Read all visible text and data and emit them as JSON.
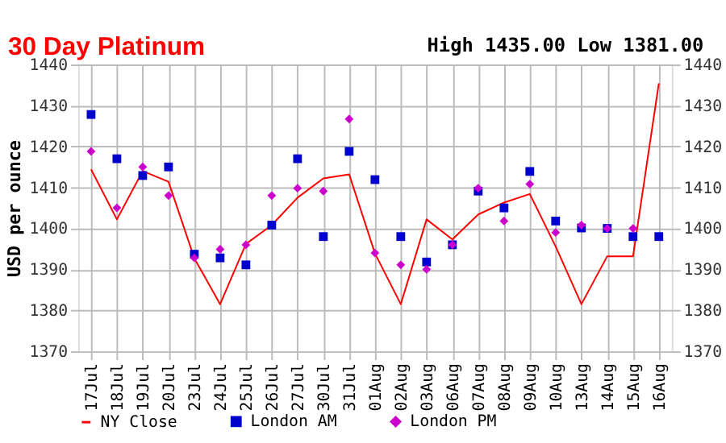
{
  "chart_data": {
    "type": "line",
    "title": "30 Day Platinum",
    "subtitle": "High 1435.00 Low 1381.00",
    "ylabel": "USD per ounce",
    "categories": [
      "17Jul",
      "18Jul",
      "19Jul",
      "20Jul",
      "23Jul",
      "24Jul",
      "25Jul",
      "26Jul",
      "27Jul",
      "30Jul",
      "31Jul",
      "01Aug",
      "02Aug",
      "03Aug",
      "06Aug",
      "07Aug",
      "08Aug",
      "09Aug",
      "10Aug",
      "13Aug",
      "14Aug",
      "15Aug",
      "16Aug"
    ],
    "series": [
      {
        "name": "NY Close",
        "color": "#ff0000",
        "marker": "none",
        "values": [
          1414.4,
          1402.2,
          1414,
          1411.4,
          1392.7,
          1381.5,
          1396.2,
          1400.8,
          1407.5,
          1412.2,
          1413.2,
          1393.9,
          1381.5,
          1402.2,
          1397.3,
          1403.4,
          1406.3,
          1408.4,
          1395.6,
          1381.5,
          1393.2,
          1393.2,
          1435.4
        ]
      },
      {
        "name": "London AM",
        "type": "scatter",
        "color": "#0000cc",
        "marker": "square",
        "values": [
          1427.8,
          1417,
          1412.9,
          1415,
          1393.7,
          1392.8,
          1391.1,
          1400.8,
          1417,
          1398,
          1418.8,
          1411.9,
          1398,
          1391.8,
          1396,
          1409.1,
          1405,
          1413.9,
          1401.8,
          1400.1,
          1400,
          1398,
          1398
        ]
      },
      {
        "name": "London PM",
        "type": "scatter",
        "color": "#cc00cc",
        "marker": "diamond",
        "values": [
          1418.8,
          1405,
          1415,
          1408,
          1392.8,
          1394.9,
          1396,
          1408,
          1409.8,
          1409.1,
          1426.7,
          1394,
          1391.1,
          1390,
          1396,
          1409.8,
          1401.8,
          1410.8,
          1399,
          1400.8,
          1400,
          1400,
          null
        ]
      }
    ],
    "ylim": [
      1370,
      1440
    ],
    "yticks": [
      1370,
      1380,
      1390,
      1400,
      1410,
      1420,
      1430,
      1440
    ],
    "y2lim": [
      1370,
      1440
    ],
    "y2ticks": [
      1370,
      1380,
      1390,
      1400,
      1410,
      1420,
      1430,
      1440
    ],
    "grid": true,
    "legend": "bottom"
  }
}
